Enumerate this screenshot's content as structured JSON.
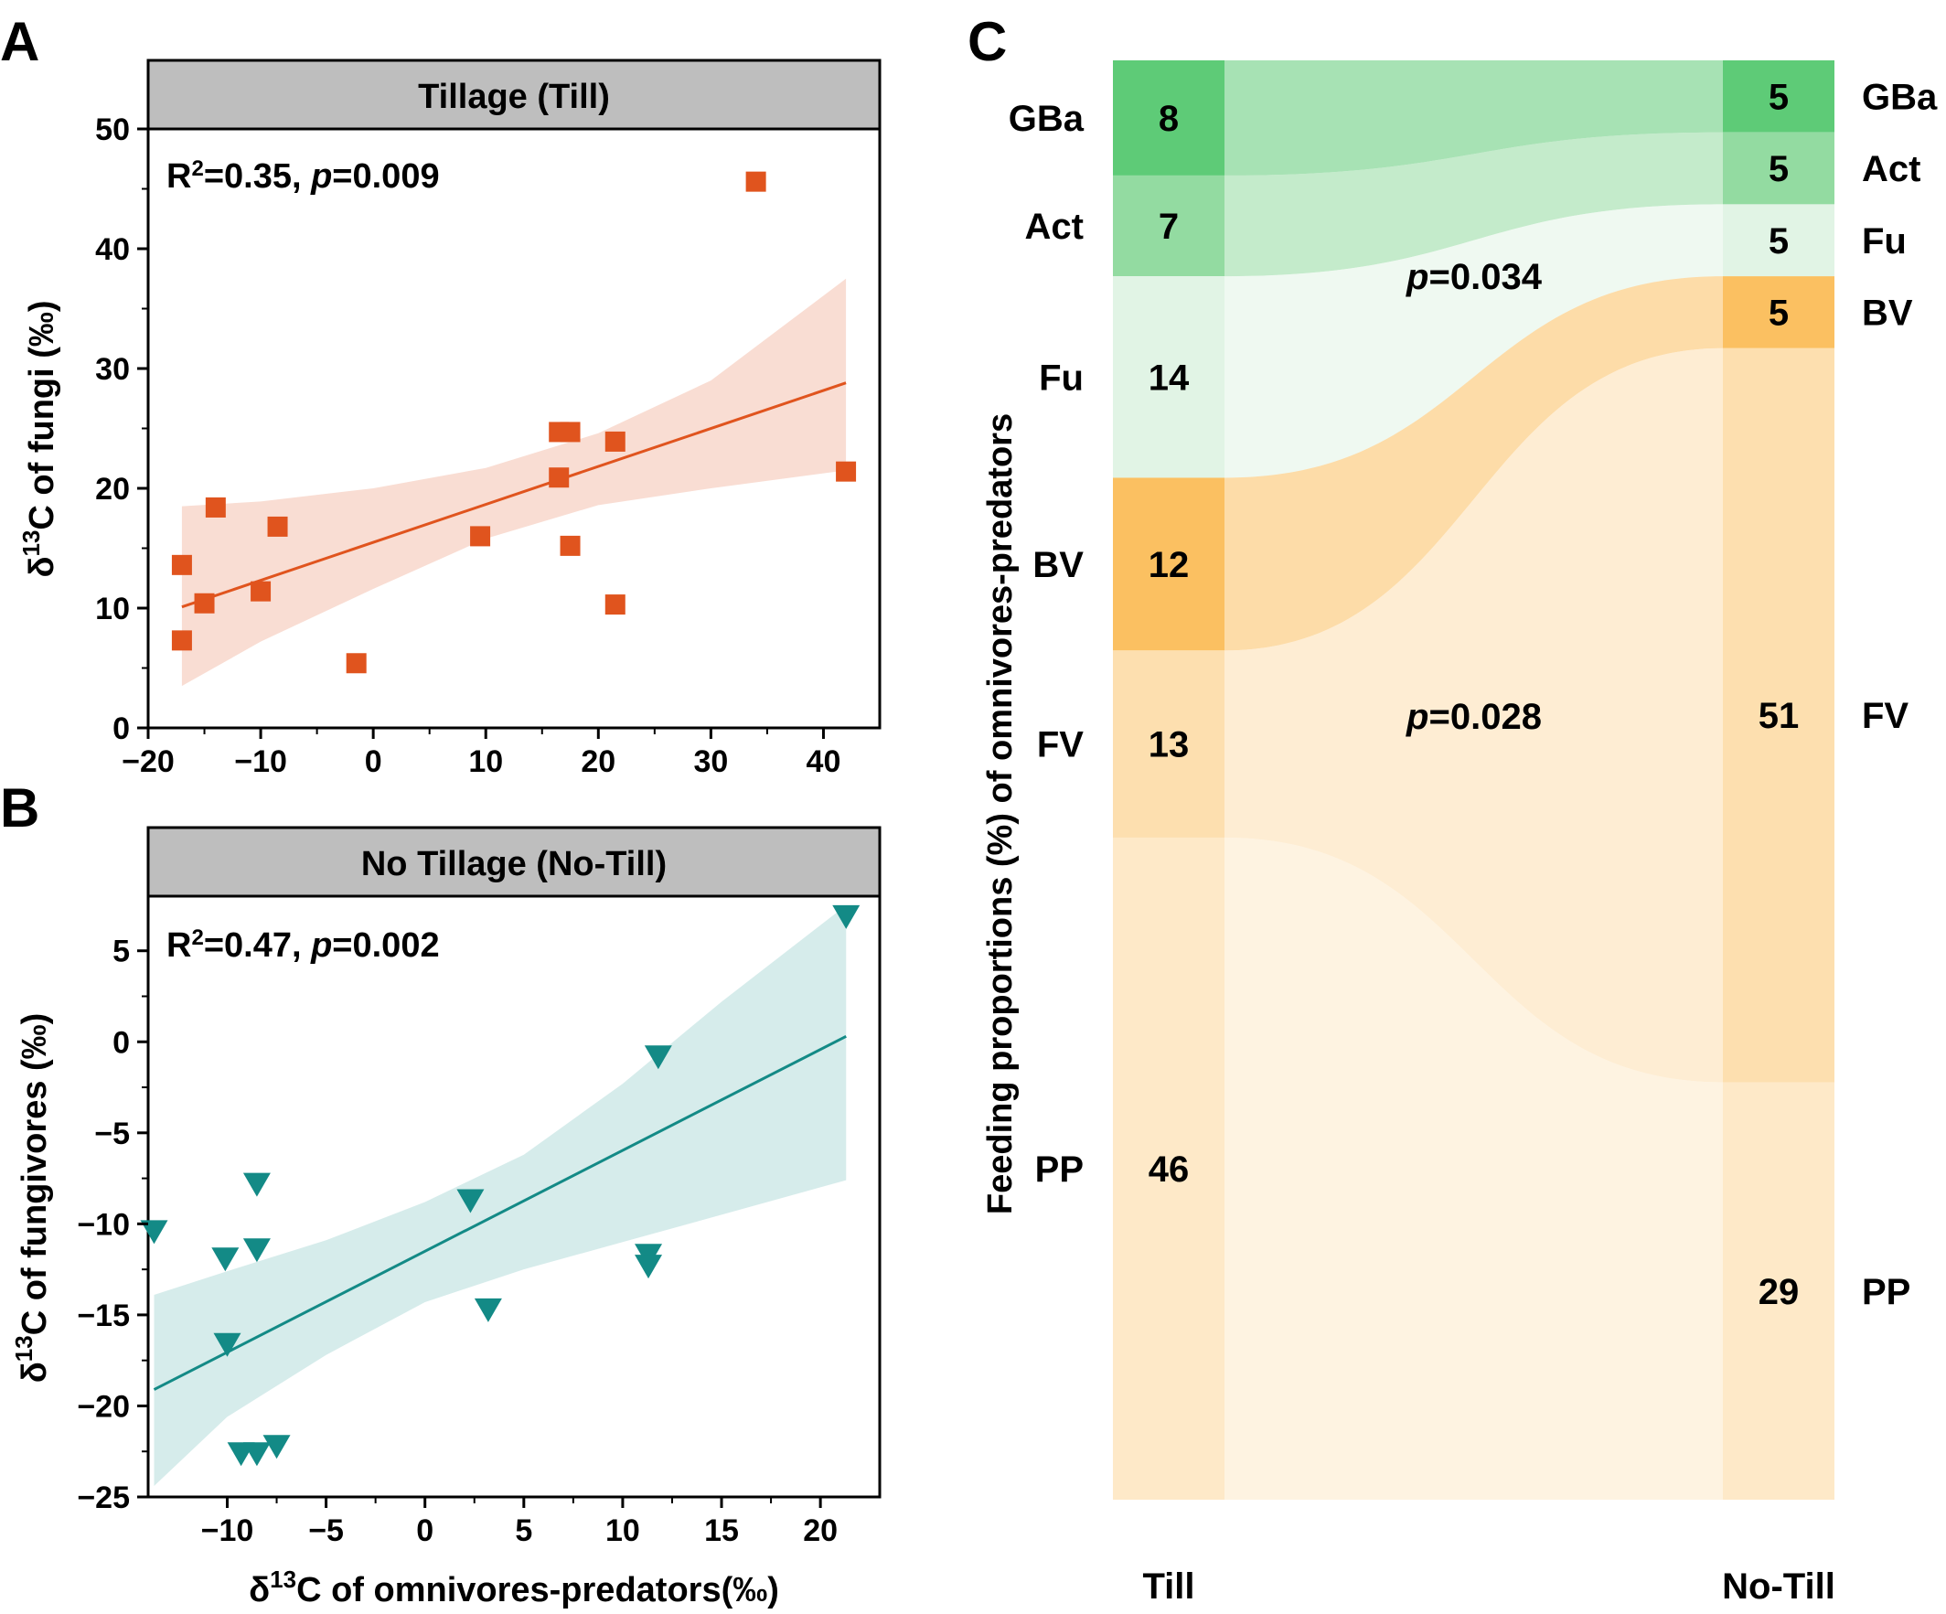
{
  "panels": {
    "A": {
      "letter": "A",
      "strip": "Tillage (Till)",
      "stat": {
        "r_prefix": "R",
        "r_sup": "2",
        "r_rest": "=0.35, ",
        "p_italic": "p",
        "p_rest": "=0.009"
      },
      "ylabel": {
        "pre": "δ",
        "sup": "13",
        "post": "C of fungi (‰)"
      }
    },
    "B": {
      "letter": "B",
      "strip": "No Tillage (No-Till)",
      "stat": {
        "r_prefix": "R",
        "r_sup": "2",
        "r_rest": "=0.47, ",
        "p_italic": "p",
        "p_rest": "=0.002"
      },
      "ylabel": {
        "pre": "δ",
        "sup": "13",
        "post": "C of fungivores (‰)"
      },
      "xlabel": {
        "pre": "δ",
        "sup": "13",
        "post": "C of omnivores-predators(‰)"
      }
    },
    "C": {
      "letter": "C",
      "ylabel": "Feeding proportions (%) of omnivores-predators"
    }
  },
  "colors": {
    "till_points": "#E0541E",
    "till_band": "#F9DDD3",
    "notill_points": "#138A86",
    "notill_band": "#D6ECEB",
    "strip_bg": "#BEBEBE",
    "GBa": "#5ECB77",
    "Act": "#93DBA1",
    "Fu": "#E1F4E5",
    "BV": "#FBC061",
    "FV": "#FDDFAF",
    "PP": "#FEE9C8"
  },
  "chart_data": [
    {
      "type": "scatter",
      "panel": "A",
      "title": "Tillage (Till)",
      "xlabel": "δ13C of omnivores-predators(‰)",
      "ylabel": "δ13C of fungi (‰)",
      "xlim": [
        -20,
        45
      ],
      "ylim": [
        0,
        50
      ],
      "xticks": [
        -20,
        -10,
        0,
        10,
        20,
        30,
        40
      ],
      "xtick_labels": [
        "−20",
        "−10",
        "0",
        "10",
        "20",
        "30",
        "40"
      ],
      "yticks": [
        0,
        10,
        20,
        30,
        40,
        50
      ],
      "ytick_labels": [
        "0",
        "10",
        "20",
        "30",
        "40",
        "50"
      ],
      "marker": "square",
      "points": [
        [
          -17,
          13.6
        ],
        [
          -17,
          7.3
        ],
        [
          -15,
          10.4
        ],
        [
          -14,
          18.4
        ],
        [
          -10,
          11.4
        ],
        [
          -8.5,
          16.8
        ],
        [
          -1.5,
          5.4
        ],
        [
          9.5,
          16.0
        ],
        [
          16.5,
          24.7
        ],
        [
          17.5,
          24.7
        ],
        [
          16.5,
          20.9
        ],
        [
          17.5,
          15.2
        ],
        [
          21.5,
          23.9
        ],
        [
          21.5,
          10.3
        ],
        [
          34,
          45.6
        ],
        [
          42,
          21.4
        ]
      ],
      "fit": {
        "x": [
          -17,
          42
        ],
        "y": [
          10.1,
          28.8
        ]
      },
      "band": {
        "x": [
          -17,
          -10,
          0,
          10,
          20,
          30,
          42
        ],
        "lower": [
          3.5,
          7.2,
          11.6,
          15.8,
          18.6,
          20.0,
          21.5
        ],
        "upper": [
          18.5,
          18.9,
          20.0,
          21.7,
          24.6,
          29.0,
          37.5
        ]
      },
      "stat": "R2=0.35, p=0.009"
    },
    {
      "type": "scatter",
      "panel": "B",
      "title": "No Tillage (No-Till)",
      "xlabel": "δ13C of omnivores-predators(‰)",
      "ylabel": "δ13C of fungivores (‰)",
      "xlim": [
        -14,
        23
      ],
      "ylim": [
        -25,
        8
      ],
      "xticks": [
        -10,
        -5,
        0,
        5,
        10,
        15,
        20
      ],
      "xtick_labels": [
        "−10",
        "−5",
        "0",
        "5",
        "10",
        "15",
        "20"
      ],
      "yticks": [
        -25,
        -20,
        -15,
        -10,
        -5,
        0,
        5
      ],
      "ytick_labels": [
        "−25",
        "−20",
        "−15",
        "−10",
        "−5",
        "0",
        "5"
      ],
      "marker": "triangle-down",
      "points": [
        [
          -13.7,
          -10.4
        ],
        [
          -10.1,
          -11.9
        ],
        [
          -8.5,
          -7.8
        ],
        [
          -8.5,
          -11.4
        ],
        [
          -10,
          -16.6
        ],
        [
          -9.3,
          -22.6
        ],
        [
          -8.5,
          -22.6
        ],
        [
          -7.5,
          -22.2
        ],
        [
          2.3,
          -8.7
        ],
        [
          3.2,
          -14.7
        ],
        [
          11.3,
          -11.7
        ],
        [
          11.3,
          -12.3
        ],
        [
          11.8,
          -0.8
        ],
        [
          21.3,
          6.9
        ]
      ],
      "fit": {
        "x": [
          -13.7,
          21.3
        ],
        "y": [
          -19.1,
          0.3
        ]
      },
      "band": {
        "x": [
          -13.7,
          -10,
          -5,
          0,
          5,
          10,
          15,
          21.3
        ],
        "lower": [
          -24.4,
          -20.6,
          -17.2,
          -14.3,
          -12.5,
          -11.0,
          -9.5,
          -7.6
        ],
        "upper": [
          -13.9,
          -12.6,
          -10.9,
          -8.8,
          -6.2,
          -2.3,
          2.2,
          7.5
        ]
      },
      "stat": "R2=0.47, p=0.002"
    },
    {
      "type": "sankey",
      "panel": "C",
      "ylabel": "Feeding proportions (%) of omnivores-predators",
      "columns": [
        "Till",
        "No-Till"
      ],
      "categories": [
        "GBa",
        "Act",
        "Fu",
        "BV",
        "FV",
        "PP"
      ],
      "till_values": [
        8,
        7,
        14,
        12,
        13,
        46
      ],
      "notill_values": [
        5,
        5,
        5,
        5,
        51,
        29
      ],
      "p_values": [
        {
          "label_italic": "p",
          "label_rest": "=0.034",
          "between": "Fu"
        },
        {
          "label_italic": "p",
          "label_rest": "=0.028",
          "between": "FV"
        }
      ]
    }
  ]
}
